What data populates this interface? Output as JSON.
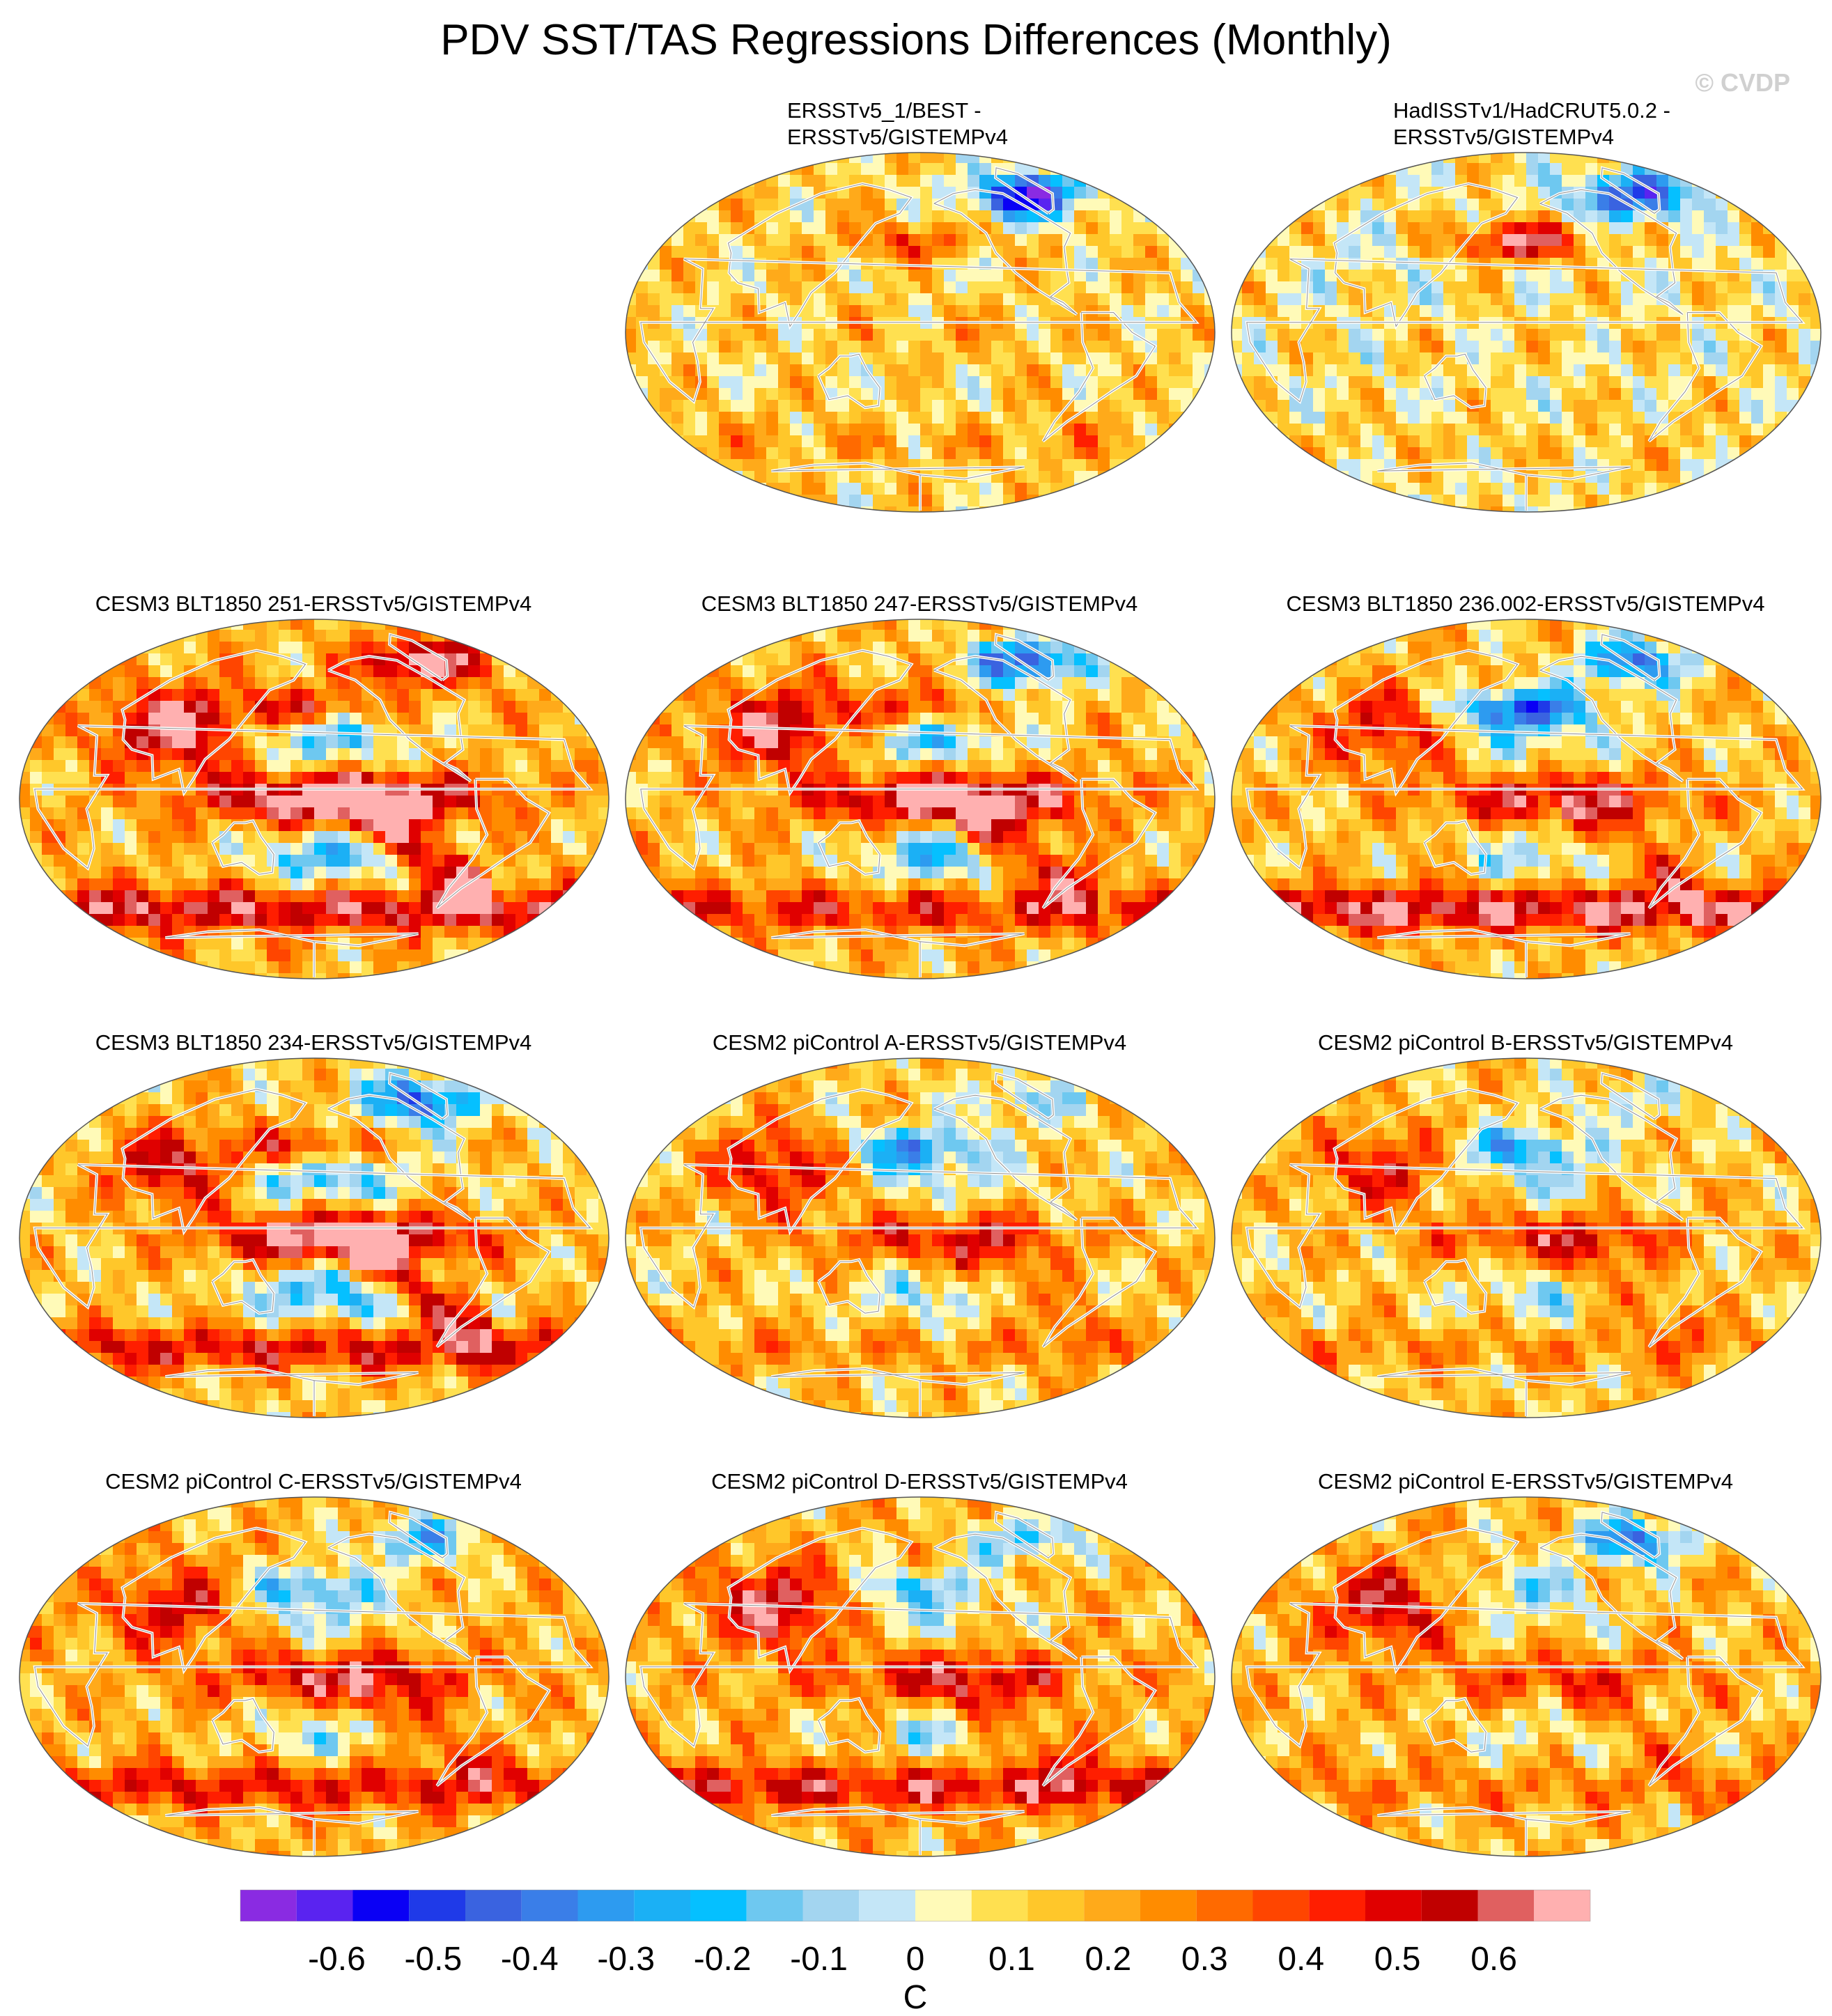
{
  "title": "PDV SST/TAS Regressions Differences (Monthly)",
  "watermark": "© CVDP",
  "colors": {
    "land_outline": "#ffffff",
    "coast": "#222222",
    "levels": [
      "#8a2be2",
      "#5a23f0",
      "#0a00f5",
      "#1f3ae8",
      "#3a63e0",
      "#3a7ee8",
      "#2d9bf0",
      "#1bb0f5",
      "#05c0ff",
      "#6ec8f0",
      "#a3d5f0",
      "#c4e6f7",
      "#fffab8",
      "#ffe050",
      "#ffc72a",
      "#ffaa1a",
      "#ff8c00",
      "#ff6a00",
      "#ff4500",
      "#ff1e00",
      "#e00000",
      "#c00000",
      "#e06060",
      "#ffb0b0"
    ]
  },
  "chart_data": {
    "type": "map-grid",
    "colorbar": {
      "ticks": [
        -0.6,
        -0.5,
        -0.4,
        -0.3,
        -0.2,
        -0.1,
        0,
        0.1,
        0.2,
        0.3,
        0.4,
        0.5,
        0.6
      ],
      "tick_labels": [
        "-0.6",
        "-0.5",
        "-0.4",
        "-0.3",
        "-0.2",
        "-0.1",
        "0",
        "0.1",
        "0.2",
        "0.3",
        "0.4",
        "0.5",
        "0.6"
      ],
      "min": -0.7,
      "max": 0.7,
      "step": 0.05,
      "units": "C"
    },
    "panels": [
      {
        "title": "ERSSTv5_1/BEST -\nERSSTv5/GISTEMPv4",
        "enso": 0.05,
        "npac": 0.22,
        "arctic": -0.6,
        "asia": 0.0,
        "south": 0.08,
        "bias": 0.0,
        "seed": 3
      },
      {
        "title": "HadISSTv1/HadCRUT5.0.2 -\nERSSTv5/GISTEMPv4",
        "enso": 0.02,
        "npac": 0.45,
        "arctic": -0.5,
        "asia": -0.05,
        "south": 0.05,
        "bias": -0.03,
        "seed": 7
      },
      {
        "title": "CESM3 BLT1850 251-ERSSTv5/GISTEMPv4",
        "enso": 0.62,
        "npac": 0.3,
        "arctic": 0.5,
        "asia": 0.45,
        "south": 0.35,
        "bias": 0.05,
        "seed": 11
      },
      {
        "title": "CESM3 BLT1850 247-ERSSTv5/GISTEMPv4",
        "enso": 0.55,
        "npac": 0.25,
        "arctic": -0.55,
        "asia": 0.4,
        "south": 0.25,
        "bias": 0.04,
        "seed": 13
      },
      {
        "title": "CESM3 BLT1850 236.002-ERSSTv5/GISTEMPv4",
        "enso": 0.35,
        "npac": -0.5,
        "arctic": -0.45,
        "asia": 0.3,
        "south": 0.4,
        "bias": 0.03,
        "seed": 17
      },
      {
        "title": "CESM3 BLT1850 234-ERSSTv5/GISTEMPv4",
        "enso": 0.58,
        "npac": 0.3,
        "arctic": -0.5,
        "asia": 0.35,
        "south": 0.3,
        "bias": 0.02,
        "seed": 19
      },
      {
        "title": "CESM2 piControl A-ERSSTv5/GISTEMPv4",
        "enso": 0.3,
        "npac": -0.35,
        "arctic": -0.2,
        "asia": 0.35,
        "south": 0.1,
        "bias": 0.02,
        "seed": 23
      },
      {
        "title": "CESM2 piControl B-ERSSTv5/GISTEMPv4",
        "enso": 0.28,
        "npac": -0.3,
        "arctic": -0.15,
        "asia": 0.3,
        "south": 0.1,
        "bias": 0.02,
        "seed": 29
      },
      {
        "title": "CESM2 piControl C-ERSSTv5/GISTEMPv4",
        "enso": 0.35,
        "npac": -0.3,
        "arctic": -0.35,
        "asia": 0.3,
        "south": 0.25,
        "bias": 0.05,
        "seed": 31
      },
      {
        "title": "CESM2 piControl D-ERSSTv5/GISTEMPv4",
        "enso": 0.3,
        "npac": -0.25,
        "arctic": -0.3,
        "asia": 0.4,
        "south": 0.3,
        "bias": 0.05,
        "seed": 37
      },
      {
        "title": "CESM2 piControl E-ERSSTv5/GISTEMPv4",
        "enso": 0.2,
        "npac": -0.2,
        "arctic": -0.45,
        "asia": 0.35,
        "south": 0.1,
        "bias": 0.04,
        "seed": 41
      }
    ]
  }
}
